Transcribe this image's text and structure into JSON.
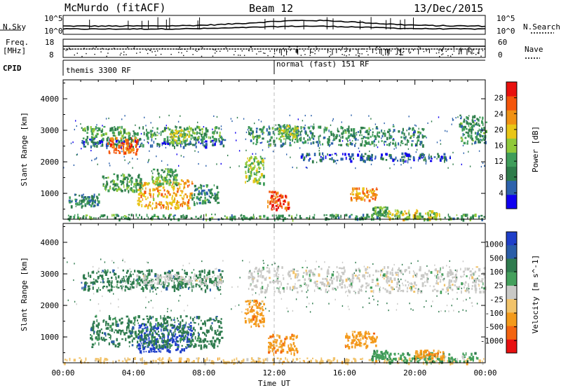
{
  "header": {
    "station": "McMurdo (fitACF)",
    "beam": "Beam 12",
    "date": "13/Dec/2015"
  },
  "status_panels": {
    "nsky_label": "N.Sky",
    "nsky_ticks": [
      "10^5",
      "10^0"
    ],
    "nsearch_label": "N.Search",
    "nsearch_ticks": [
      "10^5",
      "10^0"
    ],
    "freq_label_1": "Freq.",
    "freq_label_2": "[MHz]",
    "freq_ticks": [
      "18",
      "8"
    ],
    "nave_label": "Nave",
    "nave_ticks": [
      "60",
      "0"
    ],
    "cpid_label": "CPID",
    "cpid_modes": [
      "themis 3300 RF",
      "normal (fast) 151 RF"
    ],
    "mode_switch_hour": 12
  },
  "chart_data": [
    {
      "type": "heatmap",
      "name": "power",
      "ylabel": "Slant Range [km]",
      "yticks": [
        1000,
        2000,
        3000,
        4000
      ],
      "ylim": [
        180,
        4600
      ],
      "xlim": [
        0,
        24
      ],
      "colorbar": {
        "label": "Power [dB]",
        "ticks": [
          4,
          8,
          12,
          16,
          20,
          24,
          28
        ],
        "range": [
          0,
          32
        ],
        "colors": [
          "#1000f0",
          "#2d62ac",
          "#2e7c4a",
          "#3f9d5a",
          "#90c93a",
          "#e9c617",
          "#f09114",
          "#f4560c",
          "#e8110e"
        ]
      },
      "blobs": [
        {
          "t0": 1.0,
          "t1": 9.3,
          "r0": 2500,
          "r1": 2750,
          "v": 7
        },
        {
          "t0": 1.0,
          "t1": 9.0,
          "r0": 2750,
          "r1": 3150,
          "v": 12
        },
        {
          "t0": 2.5,
          "t1": 4.2,
          "r0": 2300,
          "r1": 2800,
          "v": 26
        },
        {
          "t0": 6.0,
          "t1": 7.2,
          "r0": 2600,
          "r1": 3050,
          "v": 16
        },
        {
          "t0": 4.2,
          "t1": 7.3,
          "r0": 550,
          "r1": 1450,
          "v": 22
        },
        {
          "t0": 2.2,
          "t1": 4.5,
          "r0": 1100,
          "r1": 1650,
          "v": 12
        },
        {
          "t0": 5.0,
          "t1": 6.5,
          "r0": 1300,
          "r1": 1800,
          "v": 13
        },
        {
          "t0": 7.3,
          "t1": 8.8,
          "r0": 700,
          "r1": 1300,
          "v": 10
        },
        {
          "t0": 0.0,
          "t1": 24.0,
          "r0": 200,
          "r1": 360,
          "v": 11
        },
        {
          "t0": 0.3,
          "t1": 2.0,
          "r0": 600,
          "r1": 1000,
          "v": 9
        },
        {
          "t0": 10.3,
          "t1": 11.4,
          "r0": 1350,
          "r1": 2200,
          "v": 15
        },
        {
          "t0": 10.5,
          "t1": 20.5,
          "r0": 2550,
          "r1": 3150,
          "v": 10
        },
        {
          "t0": 11.6,
          "t1": 12.8,
          "r0": 500,
          "r1": 1100,
          "v": 27
        },
        {
          "t0": 12.2,
          "t1": 13.3,
          "r0": 2750,
          "r1": 3200,
          "v": 15
        },
        {
          "t0": 16.3,
          "t1": 17.8,
          "r0": 800,
          "r1": 1200,
          "v": 24
        },
        {
          "t0": 17.5,
          "t1": 18.4,
          "r0": 300,
          "r1": 600,
          "v": 13
        },
        {
          "t0": 18.4,
          "t1": 21.5,
          "r0": 200,
          "r1": 500,
          "v": 18
        },
        {
          "t0": 22.5,
          "t1": 24.0,
          "r0": 2600,
          "r1": 3500,
          "v": 11
        },
        {
          "t0": 13.5,
          "t1": 22.0,
          "r0": 2050,
          "r1": 2300,
          "v": 6
        }
      ]
    },
    {
      "type": "heatmap",
      "name": "velocity",
      "xlabel": "Time UT",
      "ylabel": "Slant Range [km]",
      "xticks": [
        "00:00",
        "04:00",
        "08:00",
        "12:00",
        "16:00",
        "20:00",
        "00:00"
      ],
      "yticks": [
        1000,
        2000,
        3000,
        4000
      ],
      "ylim": [
        180,
        4600
      ],
      "xlim": [
        0,
        24
      ],
      "colorbar": {
        "label": "Velocity [m s^-1]",
        "ticks": [
          "1000",
          "500",
          "100",
          "25",
          "-25",
          "-100",
          "-500",
          "-1000"
        ],
        "colors": [
          "#1f3fc9",
          "#2a5da8",
          "#2f7b4e",
          "#44a05c",
          "#c9c9c6",
          "#f2c36a",
          "#f39a1b",
          "#f36410",
          "#e81010"
        ]
      },
      "blobs": [
        {
          "t0": 1.0,
          "t1": 9.0,
          "r0": 2500,
          "r1": 3150,
          "v": 2
        },
        {
          "t0": 4.0,
          "t1": 9.0,
          "r0": 2700,
          "r1": 3000,
          "v": 4
        },
        {
          "t0": 4.2,
          "t1": 7.3,
          "r0": 550,
          "r1": 1450,
          "v": 0
        },
        {
          "t0": 1.5,
          "t1": 9.0,
          "r0": 700,
          "r1": 1700,
          "v": 2
        },
        {
          "t0": 0.0,
          "t1": 24.0,
          "r0": 200,
          "r1": 360,
          "v": 5
        },
        {
          "t0": 10.3,
          "t1": 11.4,
          "r0": 1350,
          "r1": 2200,
          "v": 6
        },
        {
          "t0": 10.5,
          "t1": 24.0,
          "r0": 2450,
          "r1": 3250,
          "v": 4
        },
        {
          "t0": 11.6,
          "t1": 13.3,
          "r0": 500,
          "r1": 1100,
          "v": 6
        },
        {
          "t0": 16.0,
          "t1": 17.8,
          "r0": 700,
          "r1": 1200,
          "v": 6
        },
        {
          "t0": 17.5,
          "t1": 18.4,
          "r0": 300,
          "r1": 600,
          "v": 3
        },
        {
          "t0": 18.4,
          "t1": 23.5,
          "r0": 220,
          "r1": 520,
          "v": 3
        },
        {
          "t0": 19.8,
          "t1": 21.6,
          "r0": 350,
          "r1": 600,
          "v": 6
        }
      ]
    }
  ]
}
